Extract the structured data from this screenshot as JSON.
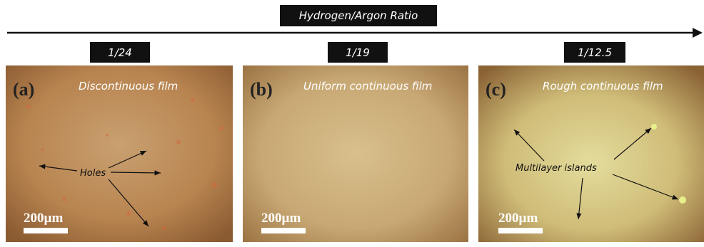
{
  "axis_label": "Hydrogen/Argon Ratio",
  "panels": [
    {
      "ratio": "1/24",
      "label": "(a)",
      "caption": "Discontinuous film",
      "annotation": "Holes",
      "scale_bar": "200µm"
    },
    {
      "ratio": "1/19",
      "label": "(b)",
      "caption": "Uniform continuous film",
      "scale_bar": "200µm"
    },
    {
      "ratio": "1/12.5",
      "label": "(c)",
      "caption": "Rough continuous film",
      "annotation": "Multilayer islands",
      "scale_bar": "200µm"
    }
  ]
}
